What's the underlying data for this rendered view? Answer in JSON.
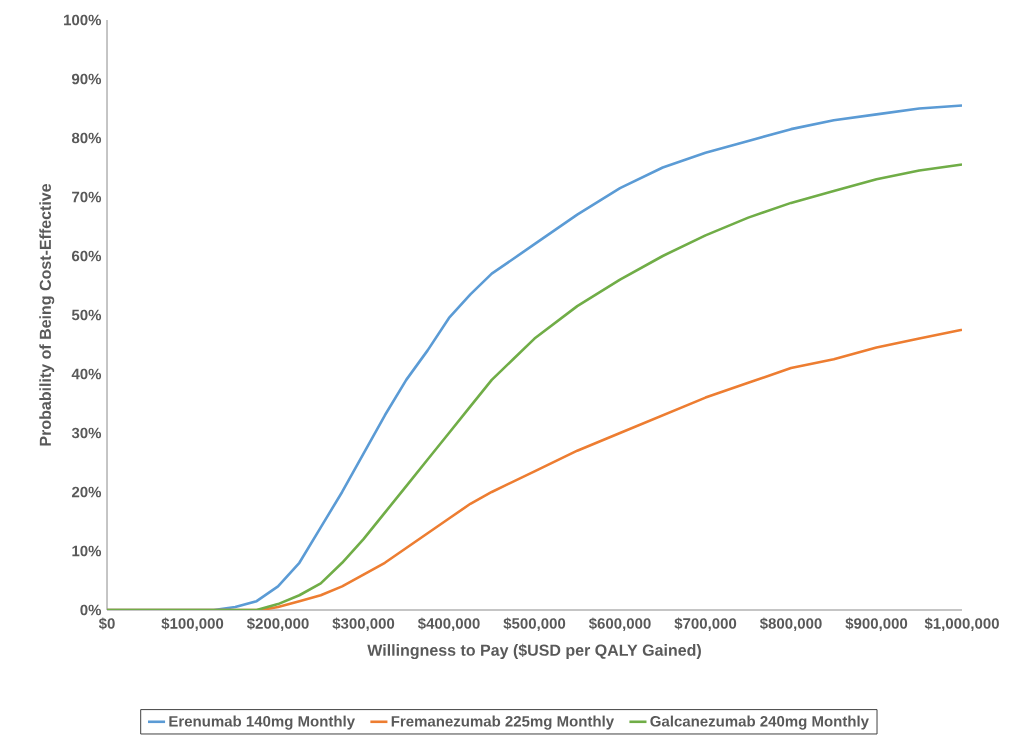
{
  "chart_data": {
    "type": "line",
    "xlabel": "Willingness to Pay ($USD per QALY Gained)",
    "ylabel": "Probability of Being Cost-Effective",
    "xlim": [
      0,
      1000000
    ],
    "ylim": [
      0,
      100
    ],
    "xticks": [
      {
        "value": 0,
        "label": "$0"
      },
      {
        "value": 100000,
        "label": "$100,000"
      },
      {
        "value": 200000,
        "label": "$200,000"
      },
      {
        "value": 300000,
        "label": "$300,000"
      },
      {
        "value": 400000,
        "label": "$400,000"
      },
      {
        "value": 500000,
        "label": "$500,000"
      },
      {
        "value": 600000,
        "label": "$600,000"
      },
      {
        "value": 700000,
        "label": "$700,000"
      },
      {
        "value": 800000,
        "label": "$800,000"
      },
      {
        "value": 900000,
        "label": "$900,000"
      },
      {
        "value": 1000000,
        "label": "$1,000,000"
      }
    ],
    "yticks": [
      {
        "value": 0,
        "label": "0%"
      },
      {
        "value": 10,
        "label": "10%"
      },
      {
        "value": 20,
        "label": "20%"
      },
      {
        "value": 30,
        "label": "30%"
      },
      {
        "value": 40,
        "label": "40%"
      },
      {
        "value": 50,
        "label": "50%"
      },
      {
        "value": 60,
        "label": "60%"
      },
      {
        "value": 70,
        "label": "70%"
      },
      {
        "value": 80,
        "label": "80%"
      },
      {
        "value": 90,
        "label": "90%"
      },
      {
        "value": 100,
        "label": "100%"
      }
    ],
    "grid": false,
    "legend": "bottom",
    "marker": "none",
    "line_style": "solid",
    "series": [
      {
        "name": "Erenumab 140mg Monthly",
        "color": "#5b9bd5",
        "x": [
          0,
          125000,
          150000,
          175000,
          200000,
          225000,
          250000,
          275000,
          300000,
          325000,
          350000,
          375000,
          400000,
          425000,
          450000,
          500000,
          550000,
          600000,
          650000,
          700000,
          750000,
          800000,
          850000,
          900000,
          950000,
          1000000
        ],
        "values": [
          0,
          0,
          0.5,
          1.5,
          4,
          8,
          14,
          20,
          26.5,
          33,
          39,
          44,
          49.5,
          53.5,
          57,
          62,
          67,
          71.5,
          75,
          77.5,
          79.5,
          81.5,
          83,
          84,
          85,
          85.5
        ]
      },
      {
        "name": "Fremanezumab 225mg Monthly",
        "color": "#ed7d31",
        "x": [
          0,
          180000,
          200000,
          225000,
          250000,
          275000,
          300000,
          325000,
          350000,
          375000,
          400000,
          425000,
          450000,
          500000,
          550000,
          600000,
          650000,
          700000,
          750000,
          800000,
          850000,
          900000,
          950000,
          1000000
        ],
        "values": [
          0,
          0,
          0.5,
          1.5,
          2.5,
          4,
          6,
          8,
          10.5,
          13,
          15.5,
          18,
          20,
          23.5,
          27,
          30,
          33,
          36,
          38.5,
          41,
          42.5,
          44.5,
          46,
          47.5
        ]
      },
      {
        "name": "Galcanezumab 240mg Monthly",
        "color": "#70ad47",
        "x": [
          0,
          175000,
          200000,
          225000,
          250000,
          275000,
          300000,
          325000,
          350000,
          375000,
          400000,
          425000,
          450000,
          475000,
          500000,
          550000,
          600000,
          650000,
          700000,
          750000,
          800000,
          850000,
          900000,
          950000,
          1000000
        ],
        "values": [
          0,
          0,
          1,
          2.5,
          4.5,
          8,
          12,
          16.5,
          21,
          25.5,
          30,
          34.5,
          39,
          42.5,
          46,
          51.5,
          56,
          60,
          63.5,
          66.5,
          69,
          71,
          73,
          74.5,
          75.5
        ]
      }
    ]
  }
}
